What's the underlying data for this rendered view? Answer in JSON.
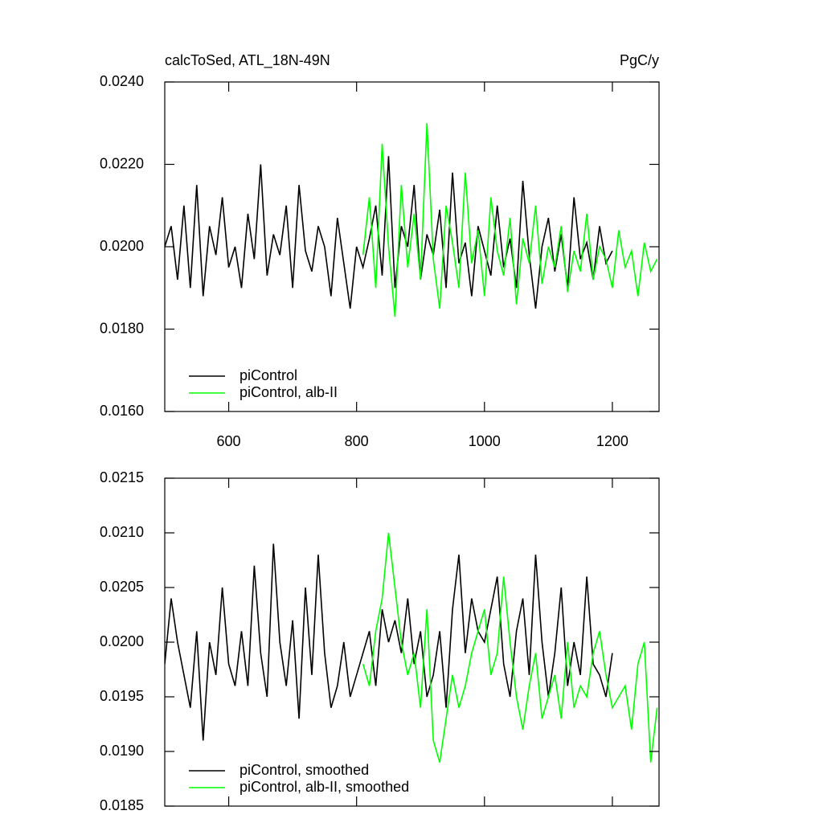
{
  "chart_data": [
    {
      "type": "line",
      "title": "calcToSed, ATL_18N-49N",
      "units": "PgC/y",
      "xlim": [
        500,
        1273
      ],
      "xticks": [
        600,
        800,
        1000,
        1200
      ],
      "show_xtick_labels": true,
      "ylim": [
        0.016,
        0.024
      ],
      "yticks": [
        {
          "value": 0.016,
          "label": "0.0160"
        },
        {
          "value": 0.018,
          "label": "0.0180"
        },
        {
          "value": 0.02,
          "label": "0.0200"
        },
        {
          "value": 0.022,
          "label": "0.0220"
        },
        {
          "value": 0.024,
          "label": "0.0240"
        }
      ],
      "legend": "lower left",
      "series": [
        {
          "name": "piControl",
          "color": "#000000",
          "x": [
            500,
            510,
            520,
            530,
            540,
            550,
            560,
            570,
            580,
            590,
            600,
            610,
            620,
            630,
            640,
            650,
            660,
            670,
            680,
            690,
            700,
            710,
            720,
            730,
            740,
            750,
            760,
            770,
            780,
            790,
            800,
            810,
            820,
            830,
            840,
            850,
            860,
            870,
            880,
            890,
            900,
            910,
            920,
            930,
            940,
            950,
            960,
            970,
            980,
            990,
            1000,
            1010,
            1020,
            1030,
            1040,
            1050,
            1060,
            1070,
            1080,
            1090,
            1100,
            1110,
            1120,
            1130,
            1140,
            1150,
            1160,
            1170,
            1180,
            1190,
            1200
          ],
          "values": [
            0.02,
            0.0205,
            0.0192,
            0.021,
            0.019,
            0.0215,
            0.0188,
            0.0205,
            0.0198,
            0.0212,
            0.0195,
            0.02,
            0.019,
            0.0208,
            0.0197,
            0.022,
            0.0193,
            0.0203,
            0.0198,
            0.021,
            0.019,
            0.0215,
            0.0199,
            0.0194,
            0.0205,
            0.02,
            0.0188,
            0.0207,
            0.0196,
            0.0185,
            0.02,
            0.0195,
            0.0202,
            0.021,
            0.0193,
            0.0222,
            0.019,
            0.0205,
            0.02,
            0.0215,
            0.0192,
            0.0203,
            0.0198,
            0.0209,
            0.019,
            0.0218,
            0.0196,
            0.0201,
            0.0188,
            0.0205,
            0.0199,
            0.0193,
            0.021,
            0.0195,
            0.0202,
            0.019,
            0.0216,
            0.0198,
            0.0185,
            0.02,
            0.0207,
            0.0194,
            0.0203,
            0.019,
            0.0212,
            0.0197,
            0.0201,
            0.0192,
            0.0205,
            0.0196,
            0.0199
          ]
        },
        {
          "name": "piControl, alb-II",
          "color": "#00ff00",
          "x": [
            810,
            820,
            830,
            840,
            850,
            860,
            870,
            880,
            890,
            900,
            910,
            920,
            930,
            940,
            950,
            960,
            970,
            980,
            990,
            1000,
            1010,
            1020,
            1030,
            1040,
            1050,
            1060,
            1070,
            1080,
            1090,
            1100,
            1110,
            1120,
            1130,
            1140,
            1150,
            1160,
            1170,
            1180,
            1190,
            1200,
            1210,
            1220,
            1230,
            1240,
            1250,
            1260,
            1270
          ],
          "values": [
            0.0198,
            0.0212,
            0.019,
            0.0225,
            0.02,
            0.0183,
            0.0215,
            0.0195,
            0.0208,
            0.0192,
            0.023,
            0.0197,
            0.0185,
            0.021,
            0.0201,
            0.019,
            0.0218,
            0.0196,
            0.0204,
            0.0188,
            0.0212,
            0.0199,
            0.0193,
            0.0207,
            0.0186,
            0.0202,
            0.0196,
            0.021,
            0.0191,
            0.02,
            0.0195,
            0.0205,
            0.0189,
            0.0199,
            0.0194,
            0.0208,
            0.0192,
            0.02,
            0.0197,
            0.019,
            0.0204,
            0.0195,
            0.0199,
            0.0188,
            0.0201,
            0.0194,
            0.0197
          ]
        }
      ]
    },
    {
      "type": "line",
      "xlim": [
        500,
        1273
      ],
      "xticks": [
        600,
        800,
        1000,
        1200
      ],
      "show_xtick_labels": false,
      "ylim": [
        0.0185,
        0.0215
      ],
      "yticks": [
        {
          "value": 0.0185,
          "label": "0.0185"
        },
        {
          "value": 0.019,
          "label": "0.0190"
        },
        {
          "value": 0.0195,
          "label": "0.0195"
        },
        {
          "value": 0.02,
          "label": "0.0200"
        },
        {
          "value": 0.0205,
          "label": "0.0205"
        },
        {
          "value": 0.021,
          "label": "0.0210"
        },
        {
          "value": 0.0215,
          "label": "0.0215"
        }
      ],
      "legend": "lower left",
      "series": [
        {
          "name": "piControl, smoothed",
          "color": "#000000",
          "x": [
            500,
            510,
            520,
            530,
            540,
            550,
            560,
            570,
            580,
            590,
            600,
            610,
            620,
            630,
            640,
            650,
            660,
            670,
            680,
            690,
            700,
            710,
            720,
            730,
            740,
            750,
            760,
            770,
            780,
            790,
            800,
            810,
            820,
            830,
            840,
            850,
            860,
            870,
            880,
            890,
            900,
            910,
            920,
            930,
            940,
            950,
            960,
            970,
            980,
            990,
            1000,
            1010,
            1020,
            1030,
            1040,
            1050,
            1060,
            1070,
            1080,
            1090,
            1100,
            1110,
            1120,
            1130,
            1140,
            1150,
            1160,
            1170,
            1180,
            1190,
            1200
          ],
          "values": [
            0.0198,
            0.0204,
            0.02,
            0.0197,
            0.0194,
            0.0201,
            0.0191,
            0.02,
            0.0197,
            0.0205,
            0.0198,
            0.0196,
            0.0201,
            0.0196,
            0.0207,
            0.0199,
            0.0195,
            0.0209,
            0.02,
            0.0196,
            0.0202,
            0.0193,
            0.0205,
            0.0197,
            0.0208,
            0.0199,
            0.0194,
            0.0196,
            0.02,
            0.0195,
            0.0197,
            0.0199,
            0.0201,
            0.0196,
            0.0203,
            0.02,
            0.0202,
            0.0199,
            0.0204,
            0.0198,
            0.0201,
            0.0195,
            0.0197,
            0.0201,
            0.0194,
            0.0203,
            0.0208,
            0.0199,
            0.0204,
            0.0201,
            0.02,
            0.0203,
            0.0206,
            0.0198,
            0.0195,
            0.0201,
            0.0204,
            0.0197,
            0.0208,
            0.02,
            0.0195,
            0.0199,
            0.0205,
            0.0196,
            0.02,
            0.0197,
            0.0206,
            0.0198,
            0.0197,
            0.0195,
            0.0199
          ]
        },
        {
          "name": "piControl, alb-II, smoothed",
          "color": "#00ff00",
          "x": [
            810,
            820,
            830,
            840,
            850,
            860,
            870,
            880,
            890,
            900,
            910,
            920,
            930,
            940,
            950,
            960,
            970,
            980,
            990,
            1000,
            1010,
            1020,
            1030,
            1040,
            1050,
            1060,
            1070,
            1080,
            1090,
            1100,
            1110,
            1120,
            1130,
            1140,
            1150,
            1160,
            1170,
            1180,
            1190,
            1200,
            1210,
            1220,
            1230,
            1240,
            1250,
            1260,
            1270
          ],
          "values": [
            0.0198,
            0.0196,
            0.0201,
            0.0204,
            0.021,
            0.0205,
            0.02,
            0.0197,
            0.0199,
            0.0194,
            0.0203,
            0.0191,
            0.0189,
            0.0193,
            0.0197,
            0.0194,
            0.0196,
            0.0199,
            0.0201,
            0.0203,
            0.0197,
            0.0199,
            0.0206,
            0.02,
            0.0195,
            0.0192,
            0.0196,
            0.0199,
            0.0193,
            0.0195,
            0.0197,
            0.0193,
            0.02,
            0.0194,
            0.0196,
            0.0195,
            0.0199,
            0.0201,
            0.0197,
            0.0194,
            0.0195,
            0.0196,
            0.0192,
            0.0198,
            0.02,
            0.0189,
            0.0194
          ]
        }
      ]
    }
  ]
}
